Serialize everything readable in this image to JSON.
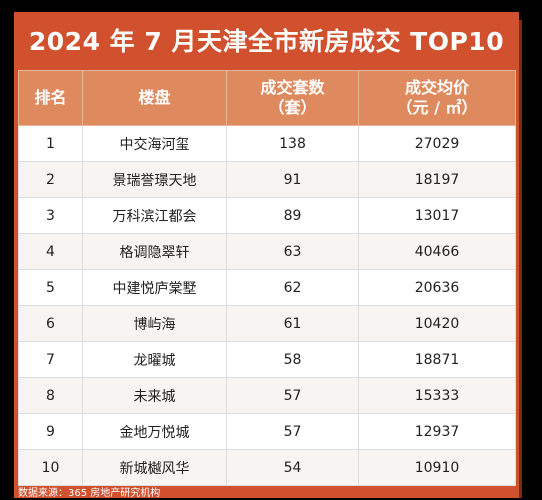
{
  "title": "2024 年 7 月天津全市新房成交 TOP10",
  "headers": {
    "rank": "排名",
    "project": "楼盘",
    "units": "成交套数",
    "units_unit": "（套）",
    "price": "成交均价",
    "price_unit": "（元 / ㎡）"
  },
  "rows": [
    {
      "rank": "1",
      "project": "中交海河玺",
      "units": "138",
      "price": "27029"
    },
    {
      "rank": "2",
      "project": "景瑞誉璟天地",
      "units": "91",
      "price": "18197"
    },
    {
      "rank": "3",
      "project": "万科滨江都会",
      "units": "89",
      "price": "13017"
    },
    {
      "rank": "4",
      "project": "格调隐翠轩",
      "units": "63",
      "price": "40466"
    },
    {
      "rank": "5",
      "project": "中建悦庐棠墅",
      "units": "62",
      "price": "20636"
    },
    {
      "rank": "6",
      "project": "博屿海",
      "units": "61",
      "price": "10420"
    },
    {
      "rank": "7",
      "project": "龙曜城",
      "units": "58",
      "price": "18871"
    },
    {
      "rank": "8",
      "project": "未来城",
      "units": "57",
      "price": "15333"
    },
    {
      "rank": "9",
      "project": "金地万悦城",
      "units": "57",
      "price": "12937"
    },
    {
      "rank": "10",
      "project": "新城樾风华",
      "units": "54",
      "price": "10910"
    }
  ],
  "footer": "数据来源：365 房地产研究机构",
  "colors": {
    "title_bg": "#d1502d",
    "header_bg": "#df8a5e",
    "page_bg": "#000000"
  }
}
